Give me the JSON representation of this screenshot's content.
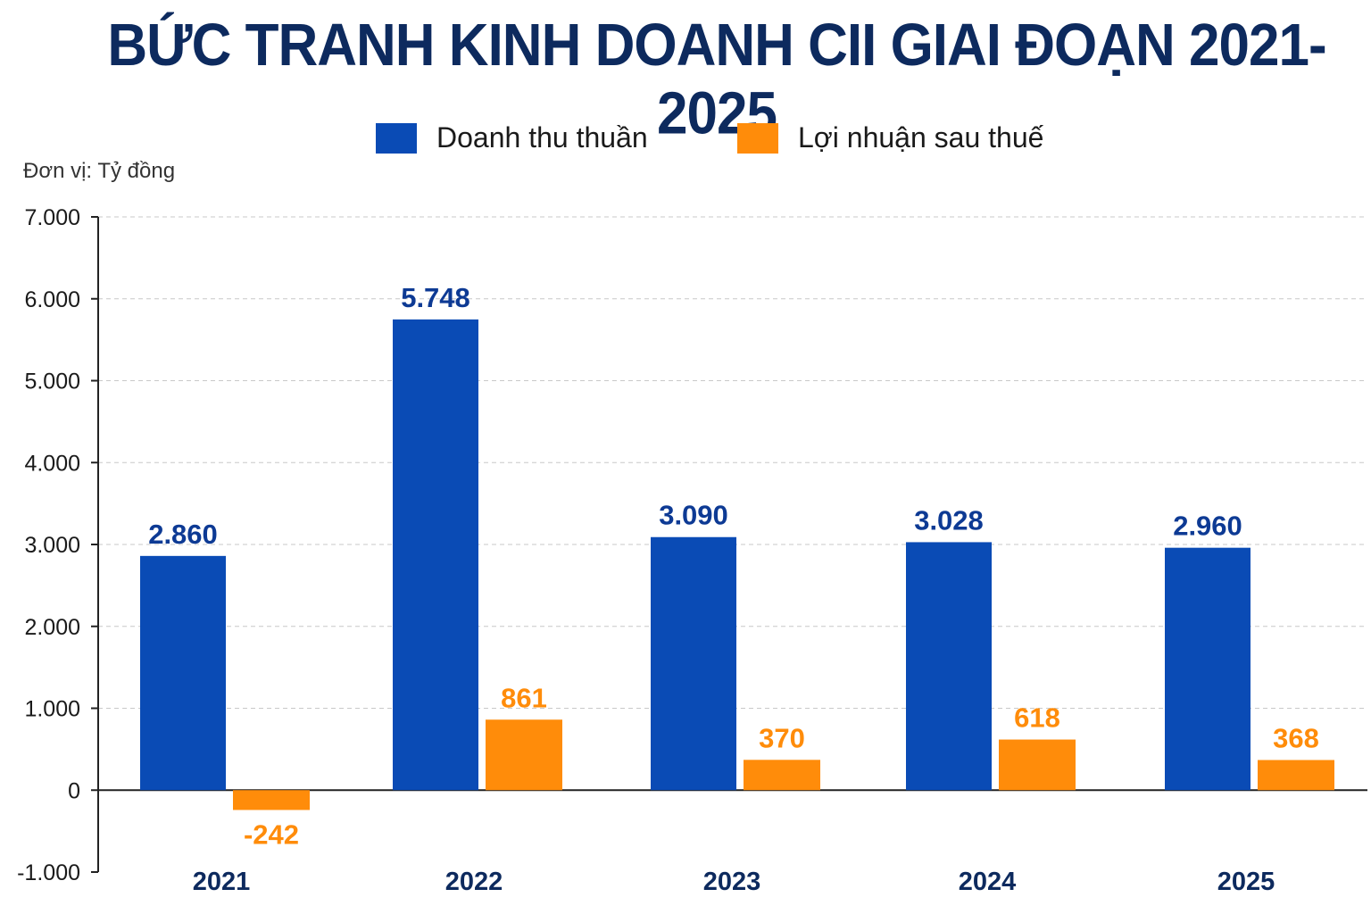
{
  "title": "BỨC TRANH KINH DOANH CII GIAI ĐOẠN 2021-2025",
  "unit_label": "Đơn vị: Tỷ đồng",
  "colors": {
    "revenue": "#0a4bb5",
    "profit": "#ff8c0a",
    "revenue_label": "#0d3a94",
    "profit_label": "#ff8c0a",
    "title": "#0d2a5e"
  },
  "chart_data": {
    "type": "bar",
    "title": "BỨC TRANH KINH DOANH CII GIAI ĐOẠN 2021-2025",
    "ylabel": "Đơn vị: Tỷ đồng",
    "xlabel": "",
    "categories": [
      "2021",
      "2022",
      "2023",
      "2024",
      "2025"
    ],
    "series": [
      {
        "name": "Doanh thu thuần",
        "values": [
          2860,
          5748,
          3090,
          3028,
          2960
        ],
        "labels": [
          "2.860",
          "5.748",
          "3.090",
          "3.028",
          "2.960"
        ]
      },
      {
        "name": "Lợi nhuận sau thuế",
        "values": [
          -242,
          861,
          370,
          618,
          368
        ],
        "labels": [
          "-242",
          "861",
          "370",
          "618",
          "368"
        ]
      }
    ],
    "ylim": [
      -1000,
      7000
    ],
    "yticks": [
      -1000,
      0,
      1000,
      2000,
      3000,
      4000,
      5000,
      6000,
      7000
    ],
    "ytick_labels": [
      "-1.000",
      "0",
      "1.000",
      "2.000",
      "3.000",
      "4.000",
      "5.000",
      "6.000",
      "7.000"
    ],
    "grid": true,
    "legend_position": "top-center"
  }
}
